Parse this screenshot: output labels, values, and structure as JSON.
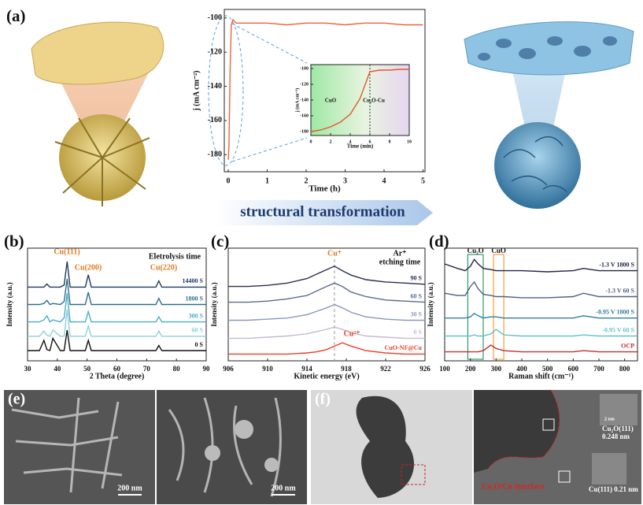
{
  "chart_data": [
    {
      "type": "line",
      "panel_label": "(a)",
      "x_label": "Time (h)",
      "y_label": "j (mA cm⁻²)",
      "x": [
        0,
        0.02,
        0.05,
        0.08,
        0.12,
        0.2,
        0.5,
        1,
        1.5,
        2,
        2.5,
        3,
        3.5,
        4,
        4.5,
        5
      ],
      "series": [
        {
          "color": "#f0623a",
          "values": [
            -183,
            -175,
            -130,
            -104,
            -101,
            -103,
            -103,
            -103,
            -104,
            -103,
            -103,
            -104,
            -103,
            -103,
            -104,
            -104
          ]
        }
      ],
      "xlim": [
        -0.1,
        5.05
      ],
      "ylim": [
        -190,
        -95
      ],
      "xticks": [
        0,
        1,
        2,
        3,
        4,
        5
      ],
      "yticks": [
        -180,
        -160,
        -140,
        -120,
        -100
      ]
    },
    {
      "type": "line",
      "x_label": "Time (min)",
      "y_label": "j (mA cm⁻²)",
      "x": [
        0,
        1,
        2,
        3,
        4,
        5,
        6,
        7,
        8,
        9,
        10
      ],
      "series": [
        {
          "color": "#e4572e",
          "values": [
            -180,
            -178,
            -174,
            -168,
            -158,
            -138,
            -104,
            -102,
            -102,
            -101,
            -101
          ]
        }
      ],
      "xlim": [
        0,
        10
      ],
      "ylim": [
        -185,
        -95
      ],
      "xticks": [
        0,
        2,
        4,
        6,
        8,
        10
      ],
      "yticks": [
        -180,
        -160,
        -140,
        -120,
        -100
      ],
      "divider_x": 6,
      "annotations": [
        "CuO",
        "Cu₂O-Cu"
      ]
    },
    {
      "type": "line",
      "panel_label": "(b)",
      "x_label": "2 Theta (degree)",
      "y_label": "Intensity (a.u.)",
      "x": [
        30,
        34,
        35.5,
        36.5,
        37.5,
        38.5,
        41,
        42.3,
        43.3,
        44.3,
        49.4,
        50.4,
        51.4,
        60,
        73.1,
        74.1,
        75.1,
        90
      ],
      "series": [
        {
          "name": "14400 S",
          "color": "#1f3a5f",
          "values": [
            72,
            72,
            72,
            75,
            72,
            72,
            72,
            74,
            97,
            72,
            72,
            84,
            72,
            72,
            72,
            78,
            72,
            72
          ]
        },
        {
          "name": "1800 S",
          "color": "#2e6e8e",
          "values": [
            55,
            55,
            56,
            59,
            55,
            56,
            55,
            58,
            80,
            55,
            55,
            67,
            55,
            55,
            55,
            61,
            55,
            55
          ]
        },
        {
          "name": "300 S",
          "color": "#4aaec8",
          "values": [
            38,
            38,
            40,
            44,
            38,
            40,
            38,
            42,
            66,
            38,
            38,
            48,
            38,
            38,
            38,
            43,
            38,
            38
          ]
        },
        {
          "name": "60 S",
          "color": "#8fcfdc",
          "values": [
            24,
            24,
            29,
            25,
            24,
            30,
            24,
            24,
            50,
            24,
            24,
            34,
            24,
            24,
            24,
            29,
            24,
            24
          ]
        },
        {
          "name": "0 S",
          "color": "#111111",
          "values": [
            10,
            10,
            20,
            11,
            10,
            22,
            10,
            10,
            30,
            10,
            10,
            20,
            10,
            10,
            10,
            15,
            10,
            10
          ]
        }
      ],
      "xlim": [
        30,
        90
      ],
      "ylim": [
        0,
        110
      ],
      "xticks": [
        30,
        40,
        50,
        60,
        70,
        80,
        90
      ],
      "annotations": [
        "Cu(111)",
        "Cu(200)",
        "Cu(220)",
        "Eletrolysis time"
      ]
    },
    {
      "type": "line",
      "panel_label": "(c)",
      "x_label": "Kinetic energy (eV)",
      "y_label": "Intensity (a.u.)",
      "x": [
        906,
        908,
        910,
        912,
        914,
        915,
        916,
        916.8,
        917.6,
        918.5,
        920,
        922,
        924,
        926
      ],
      "series": [
        {
          "name": "90 S",
          "color": "#2b2f4f",
          "values": [
            66,
            66,
            67,
            69,
            73,
            77,
            81,
            84,
            80,
            76,
            72,
            70,
            69,
            68
          ]
        },
        {
          "name": "60 S",
          "color": "#5b6a8f",
          "values": [
            52,
            52,
            53,
            55,
            58,
            62,
            66,
            69,
            66,
            61,
            57,
            54,
            53,
            52
          ]
        },
        {
          "name": "30 S",
          "color": "#8c96c0",
          "values": [
            36,
            36,
            37,
            38,
            41,
            44,
            47,
            50,
            47,
            43,
            39,
            37,
            36,
            36
          ]
        },
        {
          "name": "0 S",
          "color": "#c7b8d8",
          "values": [
            20,
            20,
            21,
            22,
            24,
            26,
            28,
            30,
            28,
            25,
            22,
            21,
            20,
            20
          ]
        },
        {
          "name": "CuO-NF@Cu",
          "color": "#e8402a",
          "values": [
            6,
            6,
            6,
            6,
            7,
            8,
            10,
            13,
            16,
            13,
            9,
            7,
            6,
            6
          ]
        }
      ],
      "xlim": [
        906,
        926
      ],
      "ylim": [
        0,
        100
      ],
      "xticks": [
        906,
        910,
        914,
        918,
        922,
        926
      ],
      "reference_x": 916.8,
      "annotations": [
        "Cu⁺",
        "Ar⁺",
        "etching time",
        "Cu²⁺"
      ]
    },
    {
      "type": "line",
      "panel_label": "(d)",
      "x_label": "Raman shift (cm⁻¹)",
      "y_label": "Intensity (a.u.)",
      "x": [
        100,
        150,
        180,
        200,
        215,
        230,
        250,
        280,
        300,
        330,
        400,
        500,
        600,
        640,
        700,
        800,
        850
      ],
      "series": [
        {
          "name": "-1.3 V 1800 S",
          "color": "#23254a",
          "values": [
            86,
            82,
            80,
            84,
            90,
            86,
            82,
            81,
            80,
            80,
            80,
            79,
            80,
            82,
            80,
            80,
            80
          ]
        },
        {
          "name": "-1.3 V 60 S",
          "color": "#4f5f86",
          "values": [
            60,
            58,
            58,
            66,
            70,
            64,
            59,
            58,
            57,
            57,
            56,
            56,
            57,
            60,
            57,
            57,
            57
          ]
        },
        {
          "name": "-0.95 V 1800 S",
          "color": "#2f7fa0",
          "values": [
            38,
            38,
            38,
            39,
            42,
            40,
            38,
            39,
            39,
            38,
            38,
            38,
            38,
            40,
            38,
            38,
            38
          ]
        },
        {
          "name": "-0.95 V 60 S",
          "color": "#66c0d0",
          "values": [
            22,
            22,
            22,
            22,
            23,
            22,
            22,
            24,
            28,
            23,
            22,
            22,
            22,
            23,
            22,
            22,
            22
          ]
        },
        {
          "name": "OCP",
          "color": "#c03030",
          "values": [
            8,
            8,
            8,
            8,
            8,
            8,
            9,
            14,
            11,
            9,
            8,
            8,
            8,
            9,
            8,
            8,
            8
          ]
        }
      ],
      "xlim": [
        100,
        850
      ],
      "ylim": [
        0,
        100
      ],
      "xticks": [
        100,
        200,
        300,
        400,
        500,
        600,
        700,
        800
      ],
      "regions": [
        {
          "label": "Cu₂O",
          "range": [
            190,
            250
          ],
          "color": "#2e9a6a"
        },
        {
          "label": "CuO",
          "range": [
            290,
            330
          ],
          "color": "#f0a040"
        }
      ]
    }
  ],
  "arrow_text": "structural transformation",
  "images": {
    "e": {
      "label": "(e)",
      "scale_bars": [
        "200 nm",
        "200 nm"
      ]
    },
    "f": {
      "label": "(f)",
      "interface": "Cu₂O/Cu interface",
      "inset_top": [
        "2 nm",
        "Cu₂O(111)",
        "0.248 nm"
      ],
      "inset_bottom": "Cu(111) 0.21 nm"
    }
  }
}
